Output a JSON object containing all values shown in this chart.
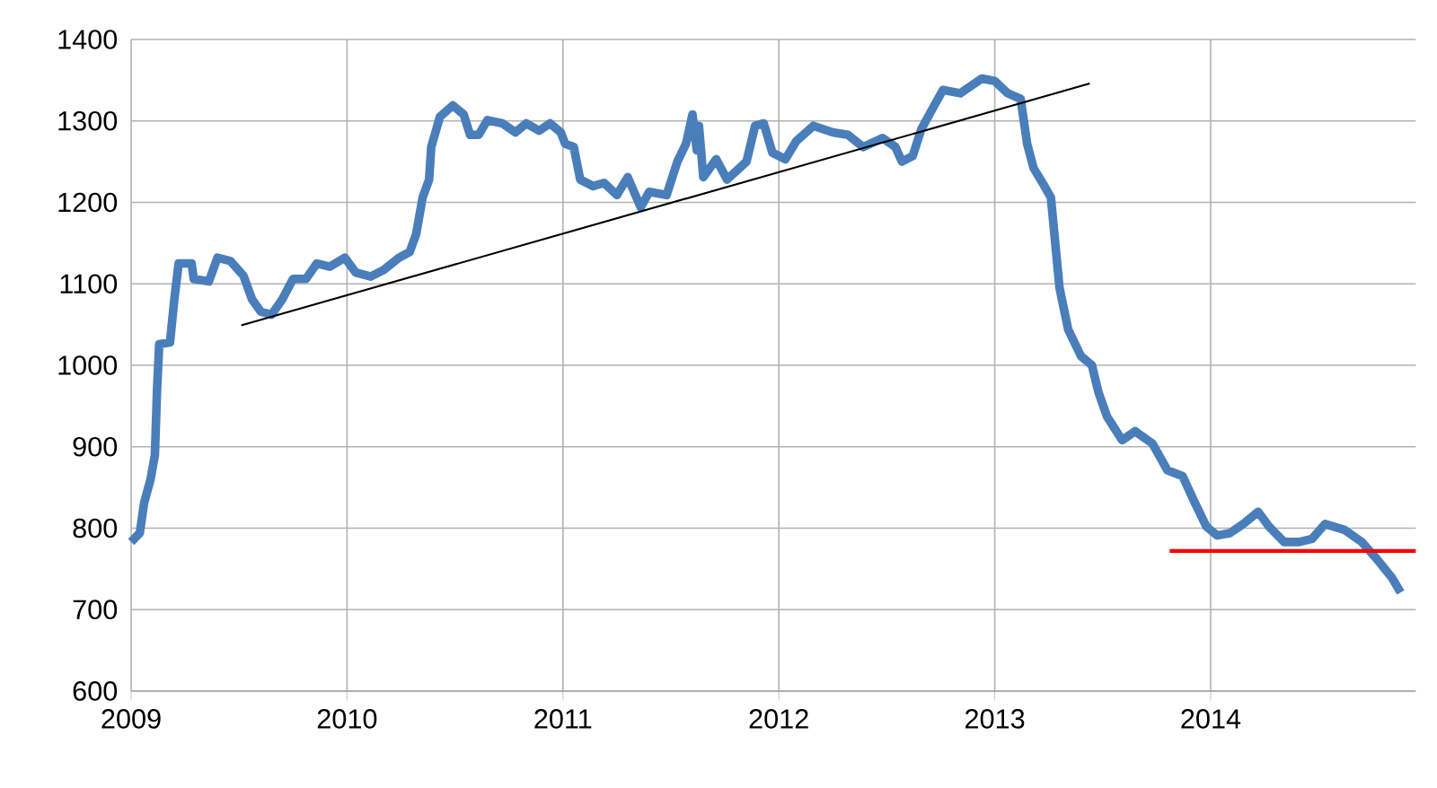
{
  "chart_data": {
    "type": "line",
    "xlim": [
      2009,
      2014.95
    ],
    "xticks": [
      2009,
      2010,
      2011,
      2012,
      2013,
      2014
    ],
    "ylim": [
      600,
      1400
    ],
    "yticks": [
      600,
      700,
      800,
      900,
      1000,
      1100,
      1200,
      1300,
      1400
    ],
    "grid": true,
    "series": [
      {
        "color": "#4a7ebb",
        "x": [
          2009.0,
          2009.04,
          2009.06,
          2009.09,
          2009.11,
          2009.12,
          2009.13,
          2009.18,
          2009.2,
          2009.22,
          2009.28,
          2009.29,
          2009.36,
          2009.4,
          2009.46,
          2009.52,
          2009.56,
          2009.6,
          2009.65,
          2009.7,
          2009.75,
          2009.81,
          2009.86,
          2009.92,
          2009.99,
          2010.04,
          2010.11,
          2010.17,
          2010.24,
          2010.29,
          2010.32,
          2010.35,
          2010.38,
          2010.39,
          2010.43,
          2010.49,
          2010.54,
          2010.57,
          2010.61,
          2010.65,
          2010.72,
          2010.78,
          2010.83,
          2010.89,
          2010.94,
          2010.99,
          2011.01,
          2011.05,
          2011.08,
          2011.14,
          2011.19,
          2011.25,
          2011.3,
          2011.36,
          2011.4,
          2011.48,
          2011.53,
          2011.57,
          2011.6,
          2011.62,
          2011.63,
          2011.65,
          2011.71,
          2011.76,
          2011.85,
          2011.89,
          2011.93,
          2011.97,
          2012.03,
          2012.08,
          2012.16,
          2012.25,
          2012.32,
          2012.39,
          2012.48,
          2012.54,
          2012.57,
          2012.62,
          2012.66,
          2012.72,
          2012.76,
          2012.84,
          2012.94,
          2013.0,
          2013.06,
          2013.12,
          2013.15,
          2013.18,
          2013.23,
          2013.26,
          2013.3,
          2013.34,
          2013.4,
          2013.45,
          2013.48,
          2013.52,
          2013.59,
          2013.65,
          2013.73,
          2013.8,
          2013.87,
          2013.92,
          2013.98,
          2014.03,
          2014.09,
          2014.15,
          2014.22,
          2014.27,
          2014.34,
          2014.41,
          2014.47,
          2014.53,
          2014.62,
          2014.7,
          2014.77,
          2014.84,
          2014.88
        ],
        "values": [
          783,
          794,
          831,
          860,
          890,
          970,
          1026,
          1028,
          1081,
          1125,
          1125,
          1106,
          1103,
          1132,
          1128,
          1110,
          1081,
          1066,
          1062,
          1081,
          1106,
          1106,
          1125,
          1121,
          1132,
          1114,
          1109,
          1117,
          1132,
          1139,
          1161,
          1206,
          1228,
          1268,
          1305,
          1319,
          1308,
          1283,
          1283,
          1301,
          1297,
          1286,
          1297,
          1288,
          1297,
          1286,
          1272,
          1268,
          1228,
          1220,
          1224,
          1209,
          1231,
          1194,
          1213,
          1209,
          1250,
          1272,
          1308,
          1264,
          1294,
          1231,
          1253,
          1228,
          1250,
          1294,
          1297,
          1261,
          1253,
          1275,
          1294,
          1286,
          1283,
          1268,
          1279,
          1268,
          1250,
          1257,
          1290,
          1319,
          1338,
          1334,
          1352,
          1349,
          1334,
          1327,
          1272,
          1242,
          1220,
          1206,
          1095,
          1044,
          1011,
          1000,
          967,
          937,
          908,
          919,
          904,
          871,
          864,
          835,
          802,
          791,
          794,
          805,
          820,
          802,
          783,
          783,
          787,
          805,
          798,
          783,
          762,
          739,
          721
        ]
      },
      {
        "type": "line",
        "color": "#000000",
        "x": [
          2009.51,
          2013.44
        ],
        "values": [
          1049,
          1346
        ]
      },
      {
        "type": "line",
        "color": "#ff0000",
        "x": [
          2013.81,
          2014.95
        ],
        "values": [
          772,
          772
        ]
      }
    ]
  }
}
